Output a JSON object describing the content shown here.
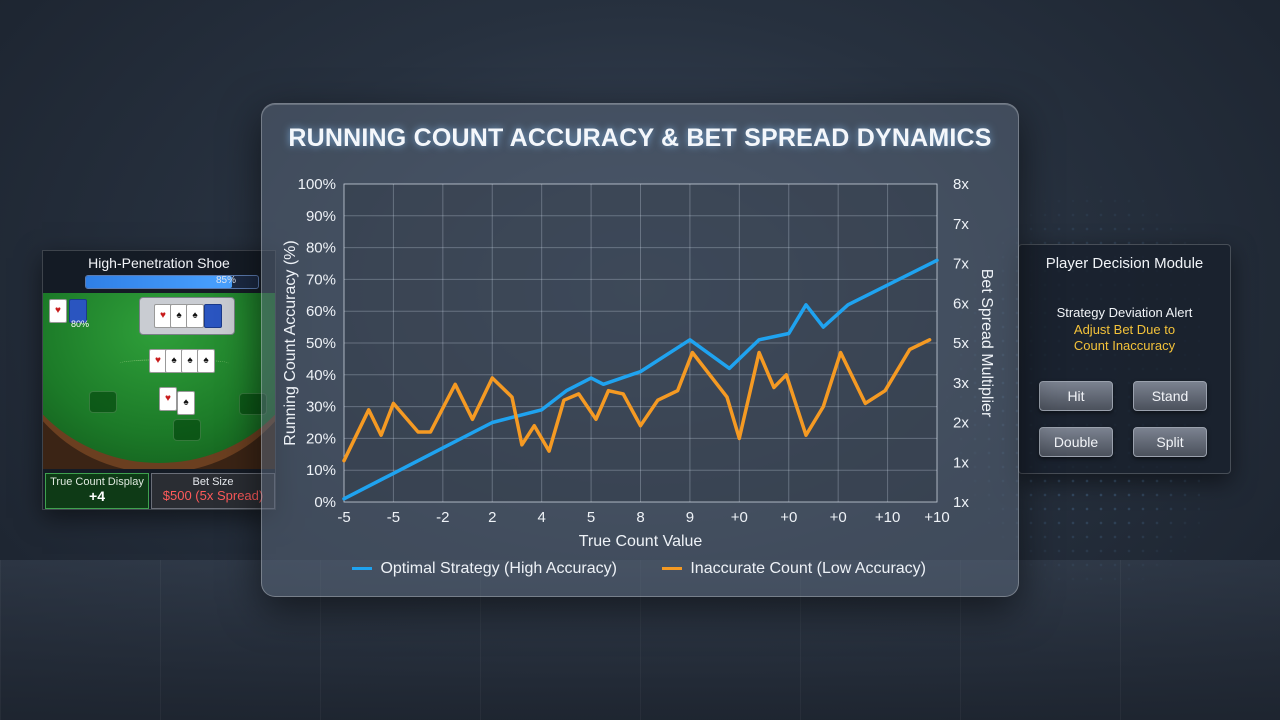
{
  "table_panel": {
    "title": "High-Penetration Shoe",
    "shoe_progress": 0.85,
    "shoe_label": "85%",
    "seat_label": "80%",
    "true_count_label": "True Count Display",
    "true_count_value": "+4",
    "bet_size_label": "Bet Size",
    "bet_size_value": "$500 (5x Spread)"
  },
  "decision_panel": {
    "title": "Player Decision Module",
    "alert_title": "Strategy Deviation Alert",
    "alert_line1": "Adjust Bet Due to",
    "alert_line2": "Count Inaccuracy",
    "buttons": {
      "hit": "Hit",
      "stand": "Stand",
      "double": "Double",
      "split": "Split"
    }
  },
  "colors": {
    "optimal": "#1fa3f0",
    "inaccurate": "#f59a23",
    "alert": "#f3c23a",
    "bet_value": "#ff5a5a"
  },
  "chart_data": {
    "type": "line",
    "title": "RUNNING COUNT ACCURACY & BET SPREAD DYNAMICS",
    "xlabel": "True Count Value",
    "ylabel": "Running Count Accuracy (%)",
    "y2label": "Bet Spread Multiplier",
    "x_tick_labels": [
      "-5",
      "-5",
      "-2",
      "2",
      "4",
      "5",
      "8",
      "9",
      "+0",
      "+0",
      "+0",
      "+10",
      "+10"
    ],
    "y_tick_labels": [
      "0%",
      "10%",
      "20%",
      "30%",
      "40%",
      "50%",
      "60%",
      "70%",
      "80%",
      "90%",
      "100%"
    ],
    "y2_tick_labels": [
      "1x",
      "1x",
      "2x",
      "3x",
      "5x",
      "6x",
      "7x",
      "7x",
      "8x"
    ],
    "ylim": [
      0,
      100
    ],
    "grid": true,
    "legend_position": "bottom",
    "x": [
      0,
      0.25,
      0.5,
      0.75,
      1,
      1.25,
      1.5,
      1.75,
      2,
      2.25,
      2.5,
      2.75,
      3,
      3.25,
      3.5,
      3.75,
      4,
      4.25,
      4.5,
      4.75,
      5,
      5.25,
      5.5,
      5.75,
      6,
      6.25,
      6.5,
      6.75,
      7,
      7.25,
      7.5,
      7.75,
      8,
      8.25,
      8.5,
      8.75,
      9,
      9.25,
      9.5,
      9.75,
      10,
      10.25,
      10.5,
      10.75,
      11,
      11.25,
      11.5,
      11.75,
      12
    ],
    "series": [
      {
        "name": "Optimal Strategy (High Accuracy)",
        "color": "#1fa3f0",
        "points": [
          [
            0,
            1
          ],
          [
            1,
            9
          ],
          [
            2,
            17
          ],
          [
            3,
            25
          ],
          [
            4,
            29
          ],
          [
            4.5,
            35
          ],
          [
            5,
            39
          ],
          [
            5.25,
            37
          ],
          [
            6,
            41
          ],
          [
            7,
            51
          ],
          [
            7.8,
            42
          ],
          [
            8.4,
            51
          ],
          [
            9,
            53
          ],
          [
            9.35,
            62
          ],
          [
            9.7,
            55
          ],
          [
            10.2,
            62
          ],
          [
            12,
            76
          ]
        ]
      },
      {
        "name": "Inaccurate Count (Low Accuracy)",
        "color": "#f59a23",
        "points": [
          [
            0,
            13
          ],
          [
            0.5,
            29
          ],
          [
            0.75,
            21
          ],
          [
            1,
            31
          ],
          [
            1.5,
            22
          ],
          [
            1.75,
            22
          ],
          [
            2.25,
            37
          ],
          [
            2.6,
            26
          ],
          [
            3,
            39
          ],
          [
            3.4,
            33
          ],
          [
            3.6,
            18
          ],
          [
            3.85,
            24
          ],
          [
            4.15,
            16
          ],
          [
            4.45,
            32
          ],
          [
            4.75,
            34
          ],
          [
            5.1,
            26
          ],
          [
            5.35,
            35
          ],
          [
            5.65,
            34
          ],
          [
            6,
            24
          ],
          [
            6.35,
            32
          ],
          [
            6.75,
            35
          ],
          [
            7.05,
            47
          ],
          [
            7.75,
            33
          ],
          [
            8,
            20
          ],
          [
            8.4,
            47
          ],
          [
            8.7,
            36
          ],
          [
            8.95,
            40
          ],
          [
            9.35,
            21
          ],
          [
            9.7,
            30
          ],
          [
            10.05,
            47
          ],
          [
            10.55,
            31
          ],
          [
            10.95,
            35
          ],
          [
            11.45,
            48
          ],
          [
            11.85,
            51
          ]
        ]
      }
    ]
  }
}
